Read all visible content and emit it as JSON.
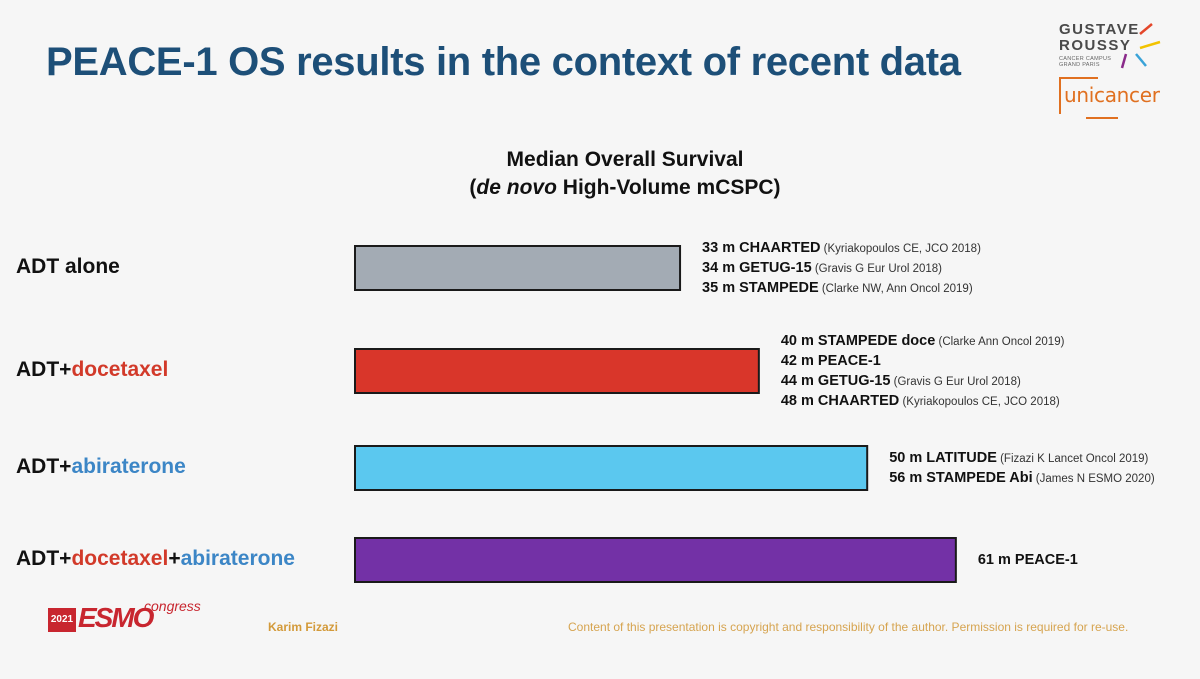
{
  "slide": {
    "title": "PEACE-1 OS results in the context of recent data",
    "presenter": "Karim Fizazi",
    "copyright": "Content of this presentation is copyright and responsibility of the author. Permission is required for re-use."
  },
  "logos": {
    "gustave_line1": "GUSTAVE",
    "gustave_line2": "ROUSSY",
    "gustave_sub": "CANCER CAMPUS GRAND PARIS",
    "unicancer": "unicancer",
    "esmo_year": "2021",
    "esmo_word": "ESMO",
    "esmo_congress": "congress"
  },
  "chart_data": {
    "type": "bar",
    "orientation": "horizontal",
    "title_line1": "Median Overall Survival",
    "title_line2_italic": "de novo",
    "title_line2_rest": " High-Volume mCSPC)",
    "title_line2_open": "(",
    "unit": "m",
    "categories": [
      {
        "parts": [
          {
            "text": "ADT alone",
            "color": "#111111"
          }
        ]
      },
      {
        "parts": [
          {
            "text": "ADT+",
            "color": "#111111"
          },
          {
            "text": "docetaxel",
            "color": "#d23a2a"
          }
        ]
      },
      {
        "parts": [
          {
            "text": "ADT+",
            "color": "#111111"
          },
          {
            "text": "abiraterone",
            "color": "#3c86c6"
          }
        ]
      },
      {
        "parts": [
          {
            "text": "ADT+",
            "color": "#111111"
          },
          {
            "text": "docetaxel",
            "color": "#d23a2a"
          },
          {
            "text": "+",
            "color": "#111111"
          },
          {
            "text": "abiraterone",
            "color": "#3c86c6"
          }
        ]
      }
    ],
    "values": [
      33,
      41,
      52,
      61
    ],
    "bar_colors": [
      "#a3abb4",
      "#d9362a",
      "#5bc8ef",
      "#7331a6"
    ],
    "studies": [
      [
        {
          "label": "33 m CHAARTED",
          "ref": "(Kyriakopoulos CE, JCO 2018)"
        },
        {
          "label": "34 m GETUG-15",
          "ref": "(Gravis G Eur Urol 2018)"
        },
        {
          "label": "35 m STAMPEDE",
          "ref": "(Clarke NW, Ann Oncol 2019)"
        }
      ],
      [
        {
          "label": "40 m STAMPEDE doce",
          "ref": "(Clarke Ann Oncol 2019)"
        },
        {
          "label": "42 m PEACE-1",
          "ref": ""
        },
        {
          "label": "44 m GETUG-15",
          "ref": "(Gravis G Eur Urol 2018)"
        },
        {
          "label": "48 m CHAARTED",
          "ref": "(Kyriakopoulos CE, JCO 2018)"
        }
      ],
      [
        {
          "label": "50 m LATITUDE",
          "ref": "(Fizazi K Lancet Oncol 2019)"
        },
        {
          "label": "56 m STAMPEDE Abi",
          "ref": "(James N ESMO 2020)"
        }
      ],
      [
        {
          "label": "61 m PEACE-1",
          "ref": ""
        }
      ]
    ]
  }
}
